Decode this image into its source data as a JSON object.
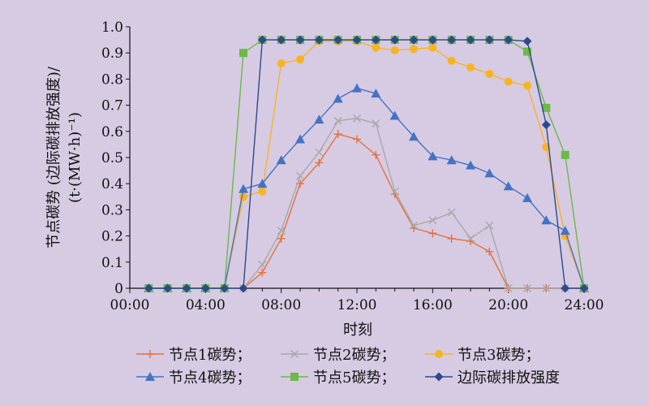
{
  "chart_data": {
    "type": "line",
    "xlabel": "时刻",
    "ylabel_line1": "节点碳势 (边际碳排放强度)/",
    "ylabel_line2": "(t·(MW·h)⁻¹)",
    "x_ticks": [
      "00:00",
      "04:00",
      "08:00",
      "12:00",
      "16:00",
      "20:00",
      "24:00"
    ],
    "y_ticks": [
      "0",
      "0.1",
      "0.2",
      "0.3",
      "0.4",
      "0.5",
      "0.6",
      "0.7",
      "0.8",
      "0.9",
      "1.0"
    ],
    "xlim": [
      0,
      24
    ],
    "ylim": [
      0,
      1.0
    ],
    "grid": false,
    "legend_position": "bottom",
    "x": [
      1,
      2,
      3,
      4,
      5,
      6,
      7,
      8,
      9,
      10,
      11,
      12,
      13,
      14,
      15,
      16,
      17,
      18,
      19,
      20,
      21,
      22,
      23,
      24
    ],
    "series": [
      {
        "name": "节点1碳势；",
        "marker": "plus",
        "color": "#e8703a",
        "values": [
          0,
          0,
          0,
          0,
          0,
          0,
          0.06,
          0.19,
          0.4,
          0.48,
          0.59,
          0.57,
          0.51,
          0.36,
          0.23,
          0.21,
          0.19,
          0.18,
          0.14,
          0,
          0,
          0,
          0,
          0
        ]
      },
      {
        "name": "节点2碳势；",
        "marker": "x",
        "color": "#a8a8a8",
        "values": [
          0,
          0,
          0,
          0,
          0,
          0,
          0.09,
          0.22,
          0.43,
          0.52,
          0.64,
          0.65,
          0.63,
          0.37,
          0.24,
          0.26,
          0.29,
          0.19,
          0.24,
          0,
          0,
          0,
          0,
          0
        ]
      },
      {
        "name": "节点3碳势；",
        "marker": "circle",
        "color": "#f8b323",
        "values": [
          0,
          0,
          0,
          0,
          0,
          0.35,
          0.37,
          0.86,
          0.875,
          0.945,
          0.945,
          0.945,
          0.92,
          0.91,
          0.915,
          0.92,
          0.87,
          0.845,
          0.82,
          0.79,
          0.775,
          0.54,
          0.2,
          0
        ]
      },
      {
        "name": "节点4碳势；",
        "marker": "triangle",
        "color": "#4472c4",
        "values": [
          0,
          0,
          0,
          0,
          0,
          0.38,
          0.4,
          0.49,
          0.57,
          0.645,
          0.725,
          0.765,
          0.745,
          0.66,
          0.58,
          0.505,
          0.49,
          0.47,
          0.44,
          0.39,
          0.345,
          0.26,
          0.22,
          0
        ]
      },
      {
        "name": "节点5碳势；",
        "marker": "square",
        "color": "#6db847",
        "values": [
          0,
          0,
          0,
          0,
          0,
          0.9,
          0.95,
          0.95,
          0.95,
          0.95,
          0.95,
          0.95,
          0.95,
          0.95,
          0.95,
          0.95,
          0.95,
          0.95,
          0.95,
          0.95,
          0.905,
          0.69,
          0.51,
          0
        ]
      },
      {
        "name": "边际碳排放强度",
        "marker": "diamond",
        "color": "#2e4a8e",
        "values": [
          0,
          0,
          0,
          0,
          0,
          0,
          0.95,
          0.95,
          0.95,
          0.95,
          0.95,
          0.95,
          0.95,
          0.95,
          0.95,
          0.95,
          0.95,
          0.95,
          0.95,
          0.95,
          0.945,
          0.625,
          0,
          0
        ]
      }
    ]
  }
}
